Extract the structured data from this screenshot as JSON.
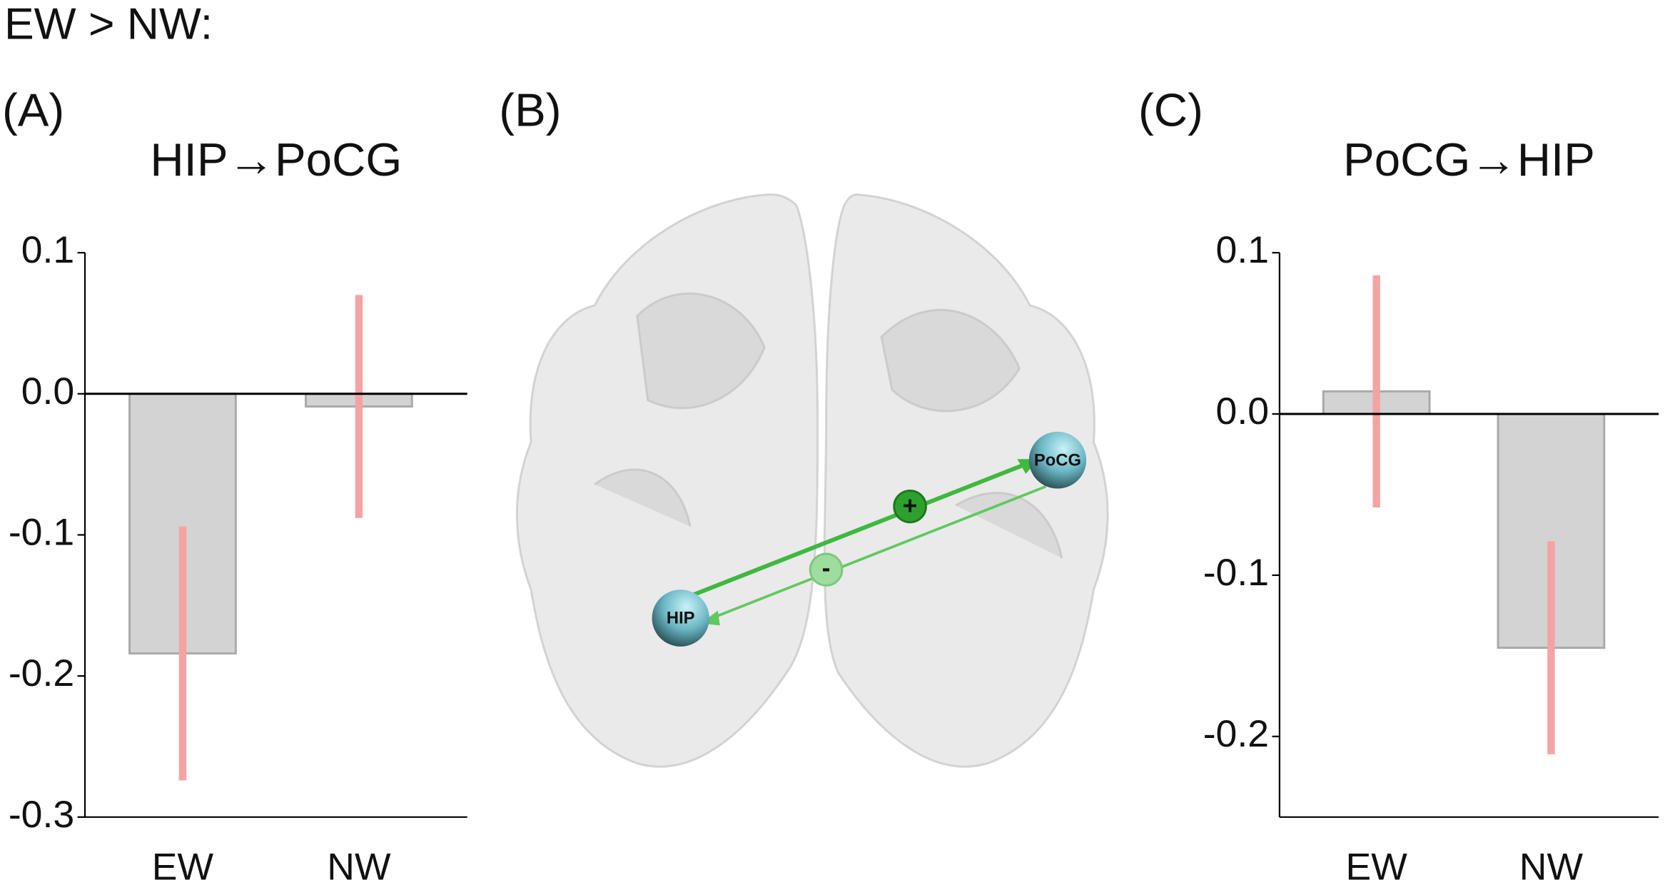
{
  "title": "EW > NW:",
  "chart_data": [
    {
      "type": "bar",
      "panel_label": "(A)",
      "title": "HIP→PoCG",
      "categories": [
        "EW",
        "NW"
      ],
      "values": [
        -0.184,
        -0.009
      ],
      "errors": [
        0.09,
        0.079
      ],
      "color": "#d3d3d3",
      "error_color": "#f4a3a3",
      "ylim": [
        -0.3,
        0.1
      ],
      "yticks": [
        0.1,
        {
          "value": 0,
          "label": "0.0"
        },
        -0.1,
        -0.2,
        -0.3
      ]
    },
    {
      "type": "bar",
      "panel_label": "(C)",
      "title": "PoCG→HIP",
      "categories": [
        "EW",
        "NW"
      ],
      "values": [
        0.014,
        -0.145
      ],
      "errors": [
        0.072,
        0.066
      ],
      "color": "#d3d3d3",
      "error_color": "#f4a3a3",
      "ylim": [
        -0.25,
        0.1
      ],
      "yticks": [
        0.1,
        {
          "value": 0,
          "label": "0.0"
        },
        -0.1,
        -0.2
      ]
    }
  ],
  "diagram": {
    "panel_label": "(B)",
    "nodes": [
      {
        "label": "HIP"
      },
      {
        "label": "PoCG"
      }
    ],
    "edges": [
      {
        "sign": "+"
      },
      {
        "sign": "-"
      }
    ]
  }
}
